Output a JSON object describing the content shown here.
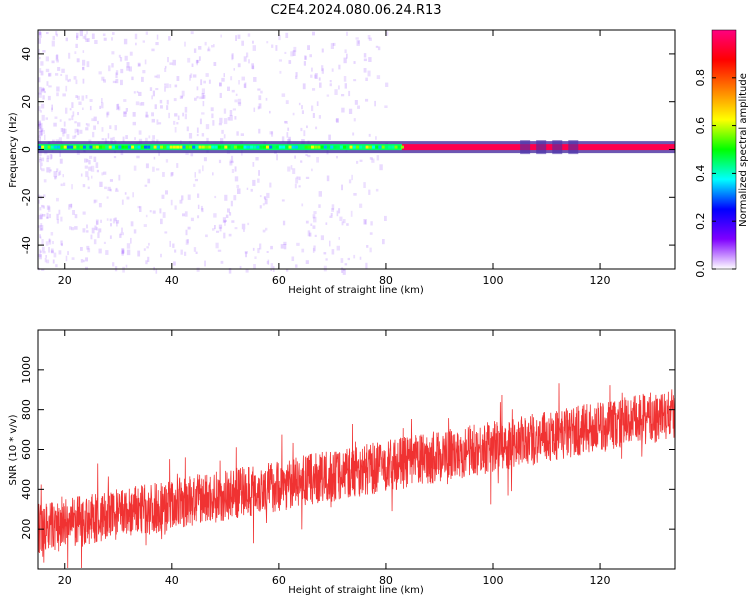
{
  "figure_title": "C2E4.2024.080.06.24.R13",
  "chart_data": [
    {
      "type": "heatmap",
      "xlabel": "Height of straight line (km)",
      "ylabel": "Frequency (Hz)",
      "xlim": [
        15,
        134
      ],
      "ylim": [
        -50,
        50
      ],
      "xticks": [
        20,
        40,
        60,
        80,
        100,
        120
      ],
      "yticks": [
        -40,
        -20,
        0,
        20,
        40
      ],
      "colorbar": {
        "label": "Normalized spectral amplitude",
        "range": [
          0,
          1
        ],
        "ticks": [
          0.0,
          0.2,
          0.4,
          0.6,
          0.8
        ],
        "colormap": [
          "#ffffff",
          "#7f00ff",
          "#0000ff",
          "#00ffff",
          "#00ff00",
          "#ffff00",
          "#ff8000",
          "#ff0000",
          "#ff0080"
        ]
      },
      "signal_band": {
        "center_hz": 1,
        "segments": [
          {
            "x_from": 15,
            "x_to": 83,
            "level": 0.45
          },
          {
            "x_from": 83,
            "x_to": 134,
            "level": 0.95
          }
        ],
        "gap_clusters_km": [
          106,
          109,
          112,
          115
        ]
      },
      "noise": {
        "x_from": 15,
        "x_to": 80,
        "level_max": 0.15
      }
    },
    {
      "type": "line",
      "xlabel": "Height of straight line (km)",
      "ylabel": "SNR (10 * v/v)",
      "xlim": [
        15,
        134
      ],
      "ylim": [
        0,
        1200
      ],
      "xticks": [
        20,
        40,
        60,
        80,
        100,
        120
      ],
      "yticks": [
        200,
        400,
        600,
        800,
        1000
      ],
      "color": "#f03232",
      "trend": {
        "x": [
          15,
          134
        ],
        "y": [
          200,
          780
        ]
      },
      "spread": 130
    }
  ]
}
